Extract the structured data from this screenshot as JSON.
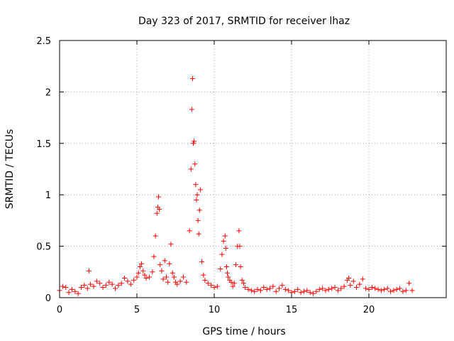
{
  "chart_data": {
    "type": "scatter",
    "title": "Day 323 of 2017, SRMTID for receiver lhaz",
    "xlabel": "GPS time / hours",
    "ylabel": "SRMTID / TECUs",
    "xlim": [
      0,
      25
    ],
    "ylim": [
      0,
      2.5
    ],
    "xticks": [
      0,
      5,
      10,
      15,
      20
    ],
    "xtick_labels": [
      "0",
      "5",
      "10",
      "15",
      "20"
    ],
    "yticks": [
      0,
      0.5,
      1,
      1.5,
      2,
      2.5
    ],
    "ytick_labels": [
      "0",
      "0.5",
      "1",
      "1.5",
      "2",
      "2.5"
    ],
    "grid": true,
    "marker": "+",
    "series": [
      {
        "name": "SRMTID",
        "color": "#ff0000",
        "x": [
          0.0,
          0.2,
          0.4,
          0.6,
          0.8,
          1.0,
          1.2,
          1.4,
          1.6,
          1.8,
          1.9,
          2.0,
          2.2,
          2.4,
          2.6,
          2.8,
          3.0,
          3.2,
          3.4,
          3.6,
          3.8,
          4.0,
          4.2,
          4.4,
          4.6,
          4.8,
          5.0,
          5.1,
          5.2,
          5.3,
          5.4,
          5.5,
          5.6,
          5.8,
          6.0,
          6.1,
          6.2,
          6.3,
          6.35,
          6.4,
          6.45,
          6.5,
          6.6,
          6.7,
          6.8,
          6.9,
          7.0,
          7.1,
          7.2,
          7.3,
          7.4,
          7.5,
          7.6,
          7.8,
          8.0,
          8.2,
          8.4,
          8.5,
          8.55,
          8.6,
          8.65,
          8.7,
          8.75,
          8.8,
          8.85,
          8.9,
          8.95,
          9.0,
          9.05,
          9.1,
          9.2,
          9.3,
          9.4,
          9.6,
          9.8,
          10.0,
          10.2,
          10.4,
          10.5,
          10.6,
          10.7,
          10.75,
          10.8,
          10.85,
          10.9,
          11.0,
          11.1,
          11.2,
          11.3,
          11.4,
          11.5,
          11.6,
          11.65,
          11.7,
          11.8,
          11.9,
          12.0,
          12.2,
          12.4,
          12.6,
          12.8,
          13.0,
          13.2,
          13.4,
          13.6,
          13.8,
          14.0,
          14.2,
          14.4,
          14.6,
          14.8,
          15.0,
          15.2,
          15.4,
          15.6,
          15.8,
          16.0,
          16.2,
          16.4,
          16.6,
          16.8,
          17.0,
          17.2,
          17.4,
          17.6,
          17.8,
          18.0,
          18.2,
          18.4,
          18.6,
          18.7,
          18.8,
          19.0,
          19.2,
          19.4,
          19.6,
          19.8,
          20.0,
          20.2,
          20.4,
          20.6,
          20.8,
          21.0,
          21.2,
          21.4,
          21.6,
          21.8,
          22.0,
          22.2,
          22.4,
          22.6,
          22.8
        ],
        "y": [
          0.07,
          0.11,
          0.1,
          0.05,
          0.08,
          0.06,
          0.04,
          0.1,
          0.12,
          0.09,
          0.26,
          0.13,
          0.11,
          0.16,
          0.14,
          0.1,
          0.12,
          0.15,
          0.13,
          0.09,
          0.12,
          0.14,
          0.19,
          0.16,
          0.13,
          0.17,
          0.2,
          0.24,
          0.3,
          0.33,
          0.26,
          0.22,
          0.19,
          0.2,
          0.25,
          0.4,
          0.6,
          0.82,
          0.88,
          0.98,
          0.86,
          0.32,
          0.26,
          0.18,
          0.36,
          0.2,
          0.15,
          0.33,
          0.52,
          0.24,
          0.2,
          0.15,
          0.13,
          0.16,
          0.2,
          0.15,
          0.65,
          1.25,
          1.83,
          2.13,
          1.5,
          1.52,
          1.3,
          1.1,
          0.95,
          1.0,
          0.75,
          0.62,
          0.85,
          1.05,
          0.35,
          0.22,
          0.17,
          0.14,
          0.12,
          0.1,
          0.11,
          0.28,
          0.42,
          0.55,
          0.6,
          0.48,
          0.3,
          0.24,
          0.2,
          0.17,
          0.15,
          0.11,
          0.14,
          0.32,
          0.5,
          0.65,
          0.5,
          0.3,
          0.17,
          0.14,
          0.1,
          0.08,
          0.07,
          0.06,
          0.08,
          0.07,
          0.1,
          0.08,
          0.09,
          0.11,
          0.06,
          0.09,
          0.12,
          0.08,
          0.07,
          0.05,
          0.06,
          0.08,
          0.05,
          0.06,
          0.07,
          0.05,
          0.04,
          0.06,
          0.08,
          0.09,
          0.07,
          0.08,
          0.09,
          0.1,
          0.07,
          0.09,
          0.11,
          0.17,
          0.19,
          0.12,
          0.16,
          0.1,
          0.13,
          0.18,
          0.09,
          0.08,
          0.1,
          0.09,
          0.08,
          0.07,
          0.08,
          0.09,
          0.06,
          0.07,
          0.08,
          0.09,
          0.06,
          0.07,
          0.14,
          0.07
        ]
      }
    ]
  }
}
